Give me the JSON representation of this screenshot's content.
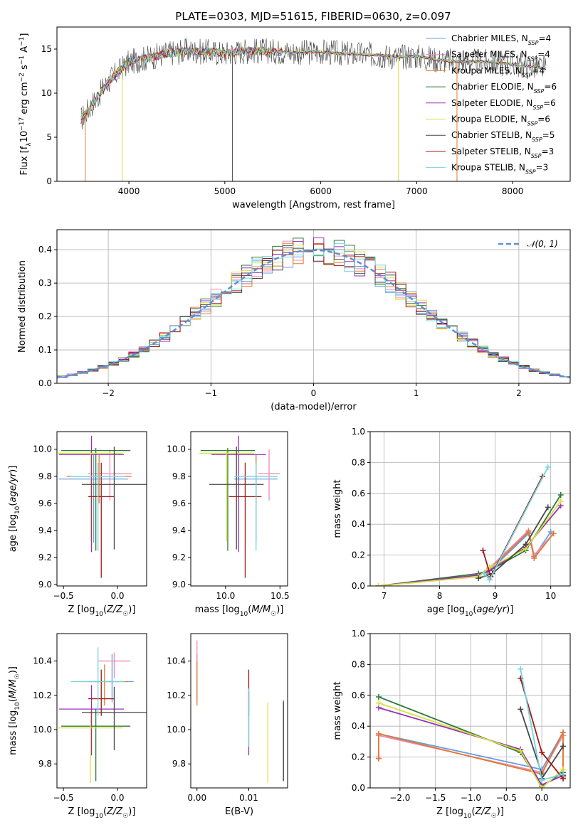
{
  "title": "PLATE=0303, MJD=51615, FIBERID=0630, z=0.097",
  "colors": {
    "Chabrier MILES": "#6a9de0",
    "Salpeter MILES": "#f08ab8",
    "Kroupa MILES": "#e07b30",
    "Chabrier ELODIE": "#2f7a3a",
    "Salpeter ELODIE": "#9a30b8",
    "Kroupa ELODIE": "#d8e040",
    "Chabrier STELIB": "#474747",
    "Salpeter STELIB": "#a01818",
    "Kroupa STELIB": "#70d6e0"
  },
  "legend": [
    {
      "name": "Chabrier MILES",
      "nssp": "4"
    },
    {
      "name": "Salpeter MILES",
      "nssp": "4"
    },
    {
      "name": "Kroupa MILES",
      "nssp": "4"
    },
    {
      "name": "Chabrier ELODIE",
      "nssp": "6"
    },
    {
      "name": "Salpeter ELODIE",
      "nssp": "6"
    },
    {
      "name": "Kroupa ELODIE",
      "nssp": "6"
    },
    {
      "name": "Chabrier STELIB",
      "nssp": "5"
    },
    {
      "name": "Salpeter STELIB",
      "nssp": "3"
    },
    {
      "name": "Kroupa STELIB",
      "nssp": "3"
    }
  ],
  "chart_data": [
    {
      "id": "spectrum",
      "type": "line",
      "title": "PLATE=0303, MJD=51615, FIBERID=0630, z=0.097",
      "xlabel": "wavelength [Angstrom, rest frame]",
      "ylabel": "Flux [f_λ 10^-17 erg cm^-2 s^-1 A^-1]",
      "xlim": [
        3250,
        8600
      ],
      "ylim": [
        0,
        17.5
      ],
      "xticks": [
        "4000",
        "5000",
        "6000",
        "7000",
        "8000"
      ],
      "yticks": [
        "0",
        "5",
        "10",
        "15"
      ],
      "x": [
        3500,
        3600,
        3800,
        4000,
        4200,
        4400,
        4600,
        4800,
        5000,
        5200,
        5400,
        5600,
        5800,
        6000,
        6200,
        6400,
        6600,
        6800,
        7000,
        7200,
        7400,
        7600,
        7800,
        8000,
        8200,
        8350
      ],
      "y": [
        7.0,
        8.5,
        11.5,
        13.5,
        14.0,
        14.5,
        14.8,
        14.7,
        14.5,
        14.8,
        14.8,
        14.7,
        14.6,
        14.7,
        14.5,
        14.4,
        14.3,
        14.1,
        14.2,
        13.8,
        13.6,
        13.6,
        13.5,
        13.3,
        13.0,
        12.8
      ]
    },
    {
      "id": "residuals",
      "type": "line",
      "xlabel": "(data-model)/error",
      "ylabel": "Normed distribution",
      "xlim": [
        -2.5,
        2.5
      ],
      "ylim": [
        0,
        0.46
      ],
      "xticks": [
        "−2",
        "−1",
        "0",
        "1",
        "2"
      ],
      "yticks": [
        "0.0",
        "0.1",
        "0.2",
        "0.3",
        "0.4"
      ],
      "legend": "𝒩(0, 1)",
      "series": [
        {
          "name": "𝒩(0, 1)",
          "mean": 0,
          "sigma": 1
        }
      ]
    },
    {
      "id": "age-vs-Z",
      "type": "scatter",
      "xlabel": "Z [log10(Z/Z☉)]",
      "ylabel": "age [log10(age/yr)]",
      "xlim": [
        -0.56,
        0.27
      ],
      "ylim": [
        8.99,
        10.13
      ],
      "xticks": [
        "−0.5",
        "0.0"
      ],
      "yticks": [
        "9.0",
        "9.2",
        "9.4",
        "9.6",
        "9.8",
        "10.0"
      ],
      "points": [
        {
          "series": "Chabrier MILES",
          "x": -0.22,
          "y": 9.78,
          "xerr": 0.32,
          "yerr": [
            0.47,
            0.18
          ]
        },
        {
          "series": "Salpeter MILES",
          "x": -0.07,
          "y": 9.82,
          "xerr": 0.2,
          "yerr": [
            0.2,
            0.18
          ]
        },
        {
          "series": "Kroupa MILES",
          "x": -0.17,
          "y": 9.8,
          "xerr": 0.3,
          "yerr": [
            0.2,
            0.16
          ]
        },
        {
          "series": "Chabrier ELODIE",
          "x": -0.2,
          "y": 9.99,
          "xerr": 0.32,
          "yerr": [
            0.74,
            0.02
          ]
        },
        {
          "series": "Salpeter ELODIE",
          "x": -0.24,
          "y": 9.96,
          "xerr": 0.3,
          "yerr": [
            0.72,
            0.14
          ]
        },
        {
          "series": "Kroupa ELODIE",
          "x": -0.25,
          "y": 9.97,
          "xerr": 0.3,
          "yerr": [
            0.65,
            0.02
          ]
        },
        {
          "series": "Chabrier STELIB",
          "x": -0.03,
          "y": 9.74,
          "xerr": 0.3,
          "yerr": [
            0.48,
            0.28
          ]
        },
        {
          "series": "Salpeter STELIB",
          "x": -0.15,
          "y": 9.65,
          "xerr": 0.12,
          "yerr": [
            0.6,
            0.25
          ]
        },
        {
          "series": "Kroupa STELIB",
          "x": -0.18,
          "y": 9.8,
          "xerr": 0.25,
          "yerr": [
            0.55,
            0.1
          ]
        }
      ]
    },
    {
      "id": "age-vs-mass",
      "type": "scatter",
      "xlabel": "mass [log10(M/M☉)]",
      "ylabel": "",
      "xlim": [
        9.68,
        10.57
      ],
      "ylim": [
        8.99,
        10.13
      ],
      "xticks": [
        "10.0",
        "10.5"
      ],
      "yticks": [
        "9.0",
        "9.2",
        "9.4",
        "9.6",
        "9.8",
        "10.0"
      ],
      "points": [
        {
          "series": "Chabrier MILES",
          "x": 10.28,
          "y": 9.78,
          "xerr": 0.2,
          "yerr": [
            0.47,
            0.18
          ]
        },
        {
          "series": "Salpeter MILES",
          "x": 10.4,
          "y": 9.82,
          "xerr": 0.1,
          "yerr": [
            0.2,
            0.18
          ]
        },
        {
          "series": "Kroupa MILES",
          "x": 10.28,
          "y": 9.8,
          "xerr": 0.15,
          "yerr": [
            0.2,
            0.16
          ]
        },
        {
          "series": "Chabrier ELODIE",
          "x": 10.02,
          "y": 9.99,
          "xerr": 0.25,
          "yerr": [
            0.74,
            0.02
          ]
        },
        {
          "series": "Salpeter ELODIE",
          "x": 10.12,
          "y": 9.96,
          "xerr": 0.25,
          "yerr": [
            0.72,
            0.14
          ]
        },
        {
          "series": "Kroupa ELODIE",
          "x": 10.01,
          "y": 9.97,
          "xerr": 0.25,
          "yerr": [
            0.65,
            0.02
          ]
        },
        {
          "series": "Chabrier STELIB",
          "x": 10.1,
          "y": 9.74,
          "xerr": 0.25,
          "yerr": [
            0.48,
            0.28
          ]
        },
        {
          "series": "Salpeter STELIB",
          "x": 10.18,
          "y": 9.65,
          "xerr": 0.15,
          "yerr": [
            0.6,
            0.25
          ]
        },
        {
          "series": "Kroupa STELIB",
          "x": 10.28,
          "y": 9.8,
          "xerr": 0.2,
          "yerr": [
            0.55,
            0.1
          ]
        }
      ]
    },
    {
      "id": "massweight-vs-age",
      "type": "line",
      "xlabel": "age  [log10(age/yr)]",
      "ylabel": "mass weight",
      "xlim": [
        6.75,
        10.35
      ],
      "ylim": [
        0,
        1
      ],
      "xticks": [
        "7",
        "8",
        "9",
        "10"
      ],
      "yticks": [
        "0.0",
        "0.2",
        "0.4",
        "0.6",
        "0.8",
        "1.0"
      ],
      "series": [
        {
          "name": "Chabrier MILES",
          "x": [
            8.85,
            9.6,
            9.7,
            10.0
          ],
          "y": [
            0.08,
            0.34,
            0.19,
            0.35
          ]
        },
        {
          "name": "Salpeter MILES",
          "x": [
            8.85,
            9.6,
            9.7,
            10.05
          ],
          "y": [
            0.1,
            0.36,
            0.2,
            0.34
          ]
        },
        {
          "name": "Kroupa MILES",
          "x": [
            8.85,
            9.6,
            9.7,
            10.05
          ],
          "y": [
            0.09,
            0.35,
            0.18,
            0.34
          ]
        },
        {
          "name": "Chabrier ELODIE",
          "x": [
            6.9,
            8.7,
            8.9,
            9.55,
            10.18
          ],
          "y": [
            0.0,
            0.08,
            0.1,
            0.23,
            0.59
          ]
        },
        {
          "name": "Salpeter ELODIE",
          "x": [
            6.9,
            8.7,
            8.9,
            9.55,
            10.18
          ],
          "y": [
            0.0,
            0.07,
            0.1,
            0.25,
            0.52
          ]
        },
        {
          "name": "Kroupa ELODIE",
          "x": [
            6.9,
            8.7,
            8.9,
            9.55,
            10.18
          ],
          "y": [
            0.0,
            0.06,
            0.12,
            0.24,
            0.55
          ]
        },
        {
          "name": "Chabrier STELIB",
          "x": [
            8.7,
            8.95,
            9.55,
            9.95
          ],
          "y": [
            0.05,
            0.08,
            0.27,
            0.51
          ]
        },
        {
          "name": "Salpeter STELIB",
          "x": [
            8.78,
            8.92,
            9.85
          ],
          "y": [
            0.23,
            0.06,
            0.71
          ]
        },
        {
          "name": "Kroupa STELIB",
          "x": [
            8.8,
            8.9,
            9.95
          ],
          "y": [
            0.08,
            0.04,
            0.77
          ]
        }
      ]
    },
    {
      "id": "mass-vs-Z",
      "type": "scatter",
      "xlabel": "Z [log10(Z/Z☉)]",
      "ylabel": "mass [log10(M/M☉)]",
      "xlim": [
        -0.56,
        0.27
      ],
      "ylim": [
        9.66,
        10.56
      ],
      "xticks": [
        "−0.5",
        "0.0"
      ],
      "yticks": [
        "9.8",
        "10.0",
        "10.2",
        "10.4"
      ],
      "points": [
        {
          "series": "Chabrier MILES",
          "x": -0.05,
          "y": 10.28,
          "xerr": 0.2,
          "yerr": [
            0.12,
            0.16
          ]
        },
        {
          "series": "Salpeter MILES",
          "x": -0.03,
          "y": 10.4,
          "xerr": 0.15,
          "yerr": [
            0.1,
            0.05
          ]
        },
        {
          "series": "Kroupa MILES",
          "x": -0.12,
          "y": 10.28,
          "xerr": 0.22,
          "yerr": [
            0.14,
            0.1
          ]
        },
        {
          "series": "Chabrier ELODIE",
          "x": -0.2,
          "y": 10.02,
          "xerr": 0.32,
          "yerr": [
            0.32,
            0.1
          ]
        },
        {
          "series": "Salpeter ELODIE",
          "x": -0.24,
          "y": 10.12,
          "xerr": 0.3,
          "yerr": [
            0.27,
            0.14
          ]
        },
        {
          "series": "Kroupa ELODIE",
          "x": -0.25,
          "y": 10.01,
          "xerr": 0.3,
          "yerr": [
            0.32,
            0.1
          ]
        },
        {
          "series": "Chabrier STELIB",
          "x": -0.03,
          "y": 10.1,
          "xerr": 0.3,
          "yerr": [
            0.22,
            0.15
          ]
        },
        {
          "series": "Salpeter STELIB",
          "x": -0.15,
          "y": 10.18,
          "xerr": 0.12,
          "yerr": [
            0.1,
            0.17
          ]
        },
        {
          "series": "Kroupa STELIB",
          "x": -0.18,
          "y": 10.28,
          "xerr": 0.25,
          "yerr": [
            0.2,
            0.2
          ]
        }
      ]
    },
    {
      "id": "mass-vs-ebv",
      "type": "scatter",
      "xlabel": "E(B-V)",
      "ylabel": "",
      "xlim": [
        -0.0012,
        0.0175
      ],
      "ylim": [
        9.66,
        10.56
      ],
      "xticks": [
        "0.00",
        "0.01"
      ],
      "yticks": [
        "9.8",
        "10.0",
        "10.2",
        "10.4"
      ],
      "points": [
        {
          "series": "Chabrier MILES",
          "x": 0.0,
          "y": 10.28,
          "yerr": [
            0.12,
            0.16
          ]
        },
        {
          "series": "Salpeter MILES",
          "x": 0.0,
          "y": 10.4,
          "yerr": [
            0.1,
            0.12
          ]
        },
        {
          "series": "Kroupa MILES",
          "x": 0.0,
          "y": 10.28,
          "yerr": [
            0.14,
            0.12
          ]
        },
        {
          "series": "Chabrier ELODIE",
          "x": 0.0167,
          "y": 10.02,
          "yerr": [
            0.32,
            0.15
          ]
        },
        {
          "series": "Salpeter ELODIE",
          "x": 0.01,
          "y": 10.12,
          "yerr": [
            0.27,
            0.1
          ]
        },
        {
          "series": "Kroupa ELODIE",
          "x": 0.0137,
          "y": 10.01,
          "yerr": [
            0.32,
            0.15
          ]
        },
        {
          "series": "Chabrier STELIB",
          "x": 0.0167,
          "y": 10.1,
          "yerr": [
            0.4,
            0.06
          ]
        },
        {
          "series": "Salpeter STELIB",
          "x": 0.01,
          "y": 10.18,
          "yerr": [
            0.1,
            0.17
          ]
        },
        {
          "series": "Kroupa STELIB",
          "x": 0.01,
          "y": 10.1,
          "yerr": [
            0.2,
            0.14
          ]
        }
      ]
    },
    {
      "id": "massweight-vs-Z",
      "type": "line",
      "xlabel": "Z [log10(Z/Z☉)]",
      "ylabel": "mass weight",
      "xlim": [
        -2.42,
        0.4
      ],
      "ylim": [
        0,
        1
      ],
      "xticks": [
        "−2.0",
        "−1.5",
        "−1.0",
        "−0.5",
        "0.0"
      ],
      "yticks": [
        "0.0",
        "0.2",
        "0.4",
        "0.6",
        "0.8",
        "1.0"
      ],
      "series": [
        {
          "name": "Chabrier MILES",
          "x": [
            -2.3,
            -2.3,
            0.0,
            0.3,
            0.3
          ],
          "y": [
            0.19,
            0.35,
            0.12,
            0.36,
            0.08
          ]
        },
        {
          "name": "Salpeter MILES",
          "x": [
            -2.3,
            -2.3,
            0.0,
            0.3,
            0.3
          ],
          "y": [
            0.2,
            0.34,
            0.1,
            0.34,
            0.08
          ]
        },
        {
          "name": "Kroupa MILES",
          "x": [
            -2.3,
            -2.3,
            0.0,
            0.3,
            0.3
          ],
          "y": [
            0.19,
            0.35,
            0.09,
            0.36,
            0.07
          ]
        },
        {
          "name": "Chabrier ELODIE",
          "x": [
            -2.3,
            -0.3,
            0.0,
            0.3
          ],
          "y": [
            0.59,
            0.23,
            0.01,
            0.1
          ]
        },
        {
          "name": "Salpeter ELODIE",
          "x": [
            -2.3,
            -0.3,
            0.0,
            0.3
          ],
          "y": [
            0.52,
            0.25,
            0.02,
            0.08
          ]
        },
        {
          "name": "Kroupa ELODIE",
          "x": [
            -2.3,
            -0.3,
            0.0,
            0.3
          ],
          "y": [
            0.55,
            0.24,
            0.0,
            0.12
          ]
        },
        {
          "name": "Chabrier STELIB",
          "x": [
            -0.3,
            0.0,
            0.0,
            0.3
          ],
          "y": [
            0.51,
            0.09,
            0.06,
            0.27
          ]
        },
        {
          "name": "Salpeter STELIB",
          "x": [
            -0.3,
            0.0,
            0.3
          ],
          "y": [
            0.71,
            0.23,
            0.06
          ]
        },
        {
          "name": "Kroupa STELIB",
          "x": [
            -0.3,
            0.0,
            0.3
          ],
          "y": [
            0.77,
            0.05,
            0.09
          ]
        }
      ]
    }
  ]
}
